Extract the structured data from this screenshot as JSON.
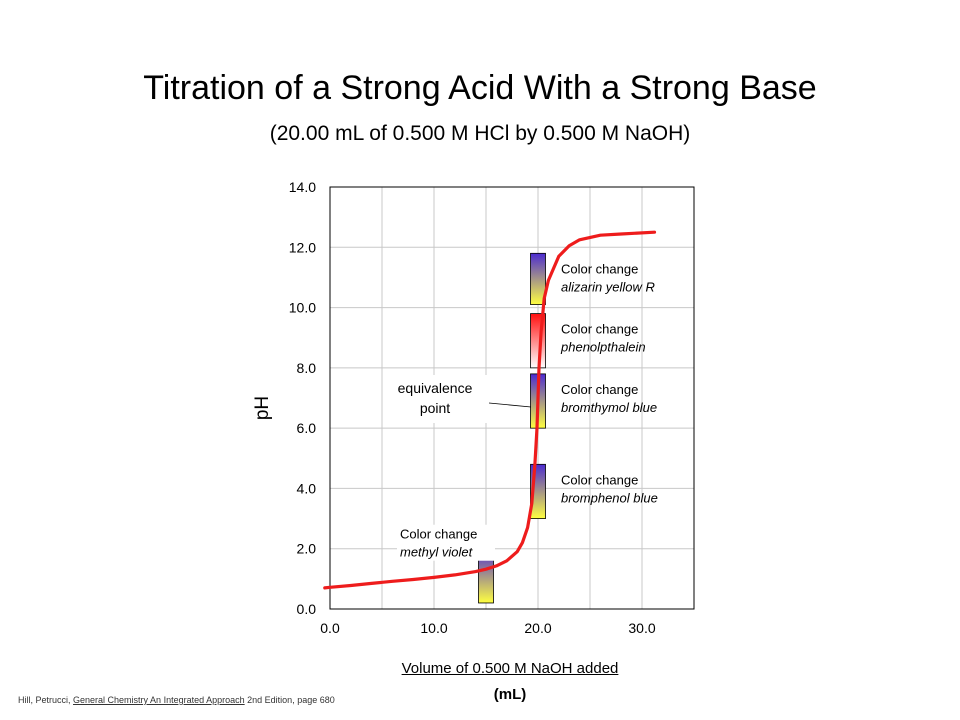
{
  "title": "Titration of a Strong Acid With a Strong Base",
  "subtitle": "(20.00 mL of 0.500 M HCl by 0.500 M NaOH)",
  "xlabel_line1": "Volume of 0.500 M NaOH added",
  "xlabel_line2": "(mL)",
  "ylabel": "pH",
  "credit": {
    "authors": "Hill, Petrucci,",
    "book": "General Chemistry An Integrated Approach",
    "edition": "2nd Edition, page 680"
  },
  "colors": {
    "curve": "#ee1c1c",
    "grid": "#c8c8c8",
    "indicator_acid_low": "#ffff40",
    "indicator_base_high": "#4b2bd0",
    "phenolphthalein_high": "#ff1010"
  },
  "chart_data": {
    "type": "line",
    "title": "Titration of a Strong Acid With a Strong Base",
    "subtitle": "(20.00 mL of 0.500 M HCl by 0.500 M NaOH)",
    "xlabel": "Volume of 0.500 M NaOH added (mL)",
    "ylabel": "pH",
    "xlim": [
      0,
      35
    ],
    "ylim": [
      0,
      14
    ],
    "grid": true,
    "xticks": [
      "0.0",
      "10.0",
      "20.0",
      "30.0"
    ],
    "yticks": [
      "0.0",
      "2.0",
      "4.0",
      "6.0",
      "8.0",
      "10.0",
      "12.0",
      "14.0"
    ],
    "series": [
      {
        "x": [
          -0.5,
          0,
          2,
          4,
          6,
          8,
          10,
          12,
          14,
          15,
          16,
          17,
          18,
          18.5,
          19,
          19.4,
          19.7,
          19.9,
          20.0,
          20.1,
          20.3,
          20.6,
          21,
          22,
          23,
          24,
          26,
          28,
          31.2
        ],
        "y": [
          0.7,
          0.72,
          0.78,
          0.85,
          0.92,
          0.98,
          1.05,
          1.13,
          1.24,
          1.32,
          1.43,
          1.6,
          1.9,
          2.2,
          2.7,
          3.5,
          4.8,
          6.0,
          7.0,
          8.0,
          9.2,
          10.3,
          10.9,
          11.7,
          12.05,
          12.25,
          12.4,
          12.44,
          12.5
        ]
      }
    ],
    "indicators": [
      {
        "name": "methyl violet",
        "label": "Color change",
        "x": 15,
        "ph_low": 0.2,
        "ph_high": 2.0,
        "low_color": "#ffff40",
        "high_color": "#4b2bd0"
      },
      {
        "name": "bromphenol blue",
        "label": "Color change",
        "x": 20,
        "ph_low": 3.0,
        "ph_high": 4.8,
        "low_color": "#ffff40",
        "high_color": "#4b2bd0"
      },
      {
        "name": "bromthymol blue",
        "label": "Color change",
        "x": 20,
        "ph_low": 6.0,
        "ph_high": 7.8,
        "low_color": "#ffff40",
        "high_color": "#4b2bd0"
      },
      {
        "name": "phenolpthalein",
        "label": "Color change",
        "x": 20,
        "ph_low": 8.0,
        "ph_high": 9.8,
        "low_color": "#ffffff",
        "high_color": "#ff1010"
      },
      {
        "name": "alizarin yellow R",
        "label": "Color change",
        "x": 20,
        "ph_low": 10.1,
        "ph_high": 11.8,
        "low_color": "#ffff40",
        "high_color": "#4b2bd0"
      }
    ],
    "annotations": [
      {
        "text": [
          "equivalence",
          "point"
        ],
        "x": 20,
        "y": 6.8
      }
    ]
  }
}
